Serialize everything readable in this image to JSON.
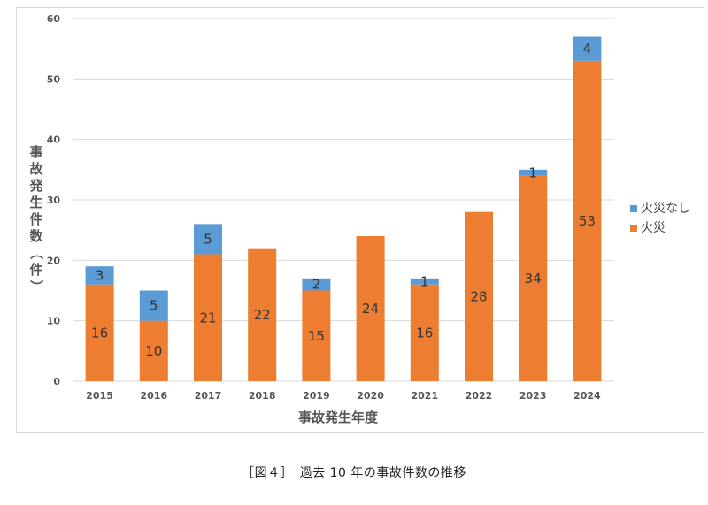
{
  "chart_data": {
    "type": "bar",
    "stacked": true,
    "categories": [
      "2015",
      "2016",
      "2017",
      "2018",
      "2019",
      "2020",
      "2021",
      "2022",
      "2023",
      "2024"
    ],
    "series": [
      {
        "name": "火災",
        "color": "#ed7d31",
        "values": [
          16,
          10,
          21,
          22,
          15,
          24,
          16,
          28,
          34,
          53
        ]
      },
      {
        "name": "火災なし",
        "color": "#5b9bd5",
        "values": [
          3,
          5,
          5,
          0,
          2,
          0,
          1,
          0,
          1,
          4
        ]
      }
    ],
    "xlabel": "事故発生年度",
    "ylabel": "事故発生件数（件）",
    "ylim": [
      0,
      60
    ],
    "yticks": [
      0,
      10,
      20,
      30,
      40,
      50,
      60
    ],
    "grid": true,
    "legend_position": "right",
    "legend_order": [
      "火災なし",
      "火災"
    ]
  },
  "caption": "［図４］　過去 10 年の事故件数の推移"
}
